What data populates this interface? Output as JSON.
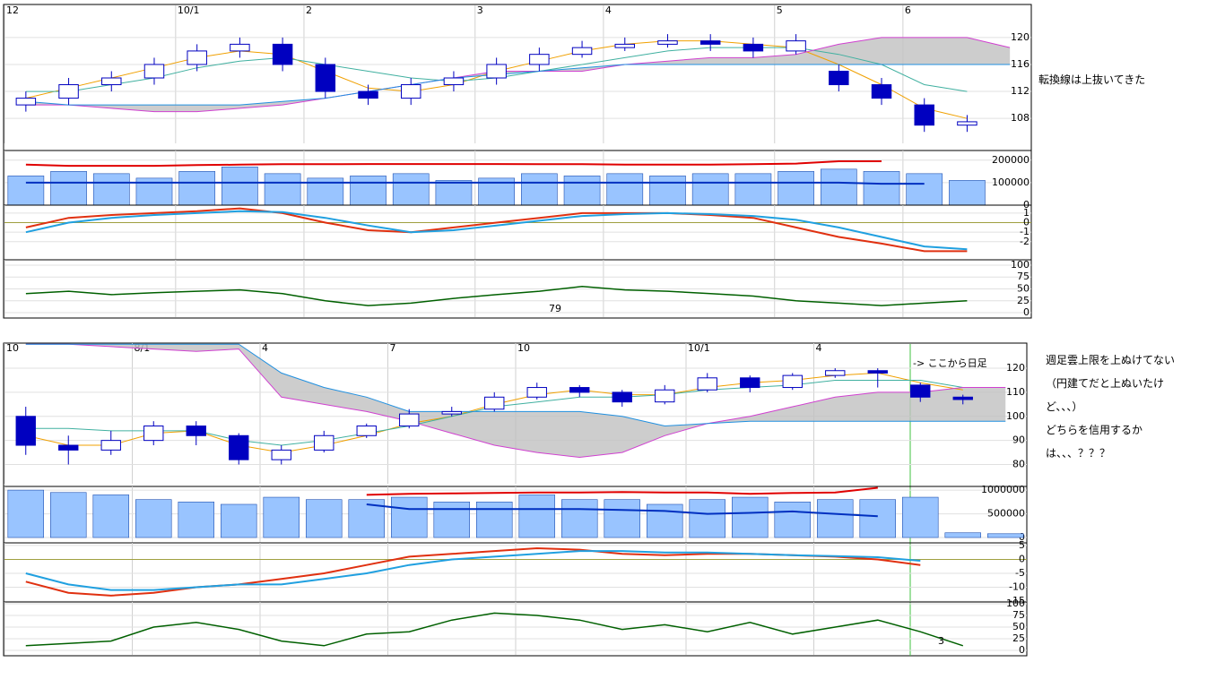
{
  "chart_data": [
    {
      "type": "candlestick",
      "categories": [
        "12",
        null,
        null,
        null,
        "10/1",
        null,
        null,
        "2",
        null,
        null,
        null,
        "3",
        null,
        null,
        "4",
        null,
        null,
        null,
        "5",
        null,
        null,
        "6",
        null,
        null
      ],
      "open": [
        110,
        111,
        113,
        114,
        116,
        118,
        119,
        116,
        112,
        111,
        113,
        114,
        116,
        117.5,
        118.5,
        119,
        119.5,
        119,
        118,
        115,
        113,
        110,
        107,
        null
      ],
      "high": [
        112,
        114,
        115,
        117,
        119,
        120,
        120,
        117,
        113,
        114,
        115,
        117,
        118.5,
        119.5,
        120,
        120.5,
        120.5,
        120,
        120.5,
        116,
        114,
        111,
        108.5,
        null
      ],
      "low": [
        109,
        110,
        112,
        113,
        115,
        117,
        115,
        111,
        110,
        110,
        112,
        113,
        115,
        117,
        118,
        118.5,
        118,
        117,
        117.5,
        112,
        110,
        106,
        106,
        null
      ],
      "close": [
        111,
        113,
        114,
        116,
        118,
        119,
        116,
        112,
        111,
        113,
        114,
        116,
        117.5,
        118.5,
        119,
        119.5,
        119,
        118,
        119.5,
        113,
        111,
        107,
        107.5,
        null
      ],
      "color": "#0000c0",
      "cloud_color": "#c0c0c0",
      "series": [
        {
          "color": "#f0a000",
          "values": [
            111,
            112.5,
            114,
            115.5,
            117,
            118,
            117.5,
            115,
            112.5,
            112,
            113,
            115,
            116.5,
            118,
            119,
            119.5,
            119.5,
            119,
            118.5,
            116,
            113,
            109.5,
            108,
            null
          ]
        },
        {
          "color": "#40b0a0",
          "values": [
            112,
            112,
            113,
            114,
            115.5,
            116.5,
            117,
            116,
            115,
            114,
            113.5,
            114,
            115,
            116,
            117,
            118,
            118.5,
            118.5,
            118.5,
            117.5,
            116,
            113,
            112,
            null
          ]
        },
        {
          "color": "#d040d0",
          "values": [
            110,
            110,
            109.5,
            109,
            109,
            109.5,
            110,
            111,
            112,
            113,
            114,
            115,
            115,
            115,
            116,
            116.5,
            117,
            117,
            117.5,
            119,
            120,
            120,
            120,
            118.5
          ]
        },
        {
          "color": "#2090e0",
          "values": [
            110.5,
            110,
            110,
            110,
            110,
            110,
            110.5,
            111,
            112,
            113,
            114,
            114.5,
            115,
            115.5,
            116,
            116,
            116,
            116,
            116,
            116,
            116,
            116,
            116,
            116
          ]
        }
      ],
      "ylim": [
        104.3,
        124.5
      ],
      "yticks": [
        108,
        112,
        116,
        120
      ],
      "grid": true
    },
    {
      "type": "bar",
      "color": "#99c4ff",
      "values": [
        130000,
        150000,
        140000,
        120000,
        150000,
        170000,
        140000,
        120000,
        130000,
        140000,
        110000,
        120000,
        140000,
        130000,
        140000,
        130000,
        140000,
        140000,
        150000,
        160000,
        150000,
        140000,
        110000,
        null
      ],
      "series": [
        {
          "color": "#e00000",
          "values": [
            180000,
            175000,
            175000,
            175000,
            178000,
            180000,
            182000,
            182000,
            183000,
            183000,
            183000,
            183000,
            182000,
            182000,
            180000,
            180000,
            180000,
            182000,
            185000,
            195000,
            195000,
            null,
            null,
            null
          ]
        },
        {
          "color": "#0030c0",
          "values": [
            100000,
            100000,
            100000,
            100000,
            100000,
            100000,
            100000,
            100000,
            100000,
            100000,
            100000,
            100000,
            100000,
            100000,
            100000,
            100000,
            100000,
            100000,
            100000,
            100000,
            95000,
            95000,
            null,
            null
          ]
        }
      ],
      "ylim": [
        0,
        235000
      ],
      "yticks": [
        0,
        100000,
        200000
      ]
    },
    {
      "type": "line",
      "series": [
        {
          "color": "#e03010",
          "values": [
            -0.5,
            0.5,
            0.8,
            1,
            1.2,
            1.5,
            1,
            0,
            -0.8,
            -1,
            -0.5,
            0,
            0.5,
            1,
            1,
            1,
            0.8,
            0.5,
            -0.5,
            -1.5,
            -2.2,
            -3,
            -3,
            null
          ]
        },
        {
          "color": "#20a0e0",
          "values": [
            -1,
            0,
            0.5,
            0.8,
            1,
            1.2,
            1.1,
            0.5,
            -0.3,
            -1,
            -0.8,
            -0.3,
            0.2,
            0.7,
            0.9,
            1,
            0.9,
            0.7,
            0.3,
            -0.5,
            -1.5,
            -2.5,
            -2.8,
            null
          ]
        }
      ],
      "ylim": [
        -3.9,
        1.65
      ],
      "yticks": [
        1,
        0,
        -1,
        -2
      ]
    },
    {
      "type": "line",
      "color": "#006000",
      "values": [
        40,
        45,
        38,
        42,
        45,
        48,
        40,
        25,
        15,
        20,
        30,
        38,
        45,
        55,
        48,
        45,
        40,
        35,
        25,
        20,
        15,
        20,
        25,
        null
      ],
      "ylim": [
        -9.4,
        107.5
      ],
      "yticks": [
        100,
        75,
        50,
        25,
        0
      ],
      "annotation": "79"
    },
    {
      "type": "candlestick",
      "categories": [
        "10",
        null,
        null,
        "8/1",
        null,
        null,
        "4",
        null,
        null,
        "7",
        null,
        null,
        "10",
        null,
        null,
        null,
        "10/1",
        null,
        null,
        "4",
        null,
        null,
        null,
        null
      ],
      "open": [
        100,
        88,
        86,
        90,
        96,
        92,
        82,
        86,
        92,
        96,
        101,
        103,
        108,
        112,
        110,
        106,
        111,
        116,
        112,
        117,
        119,
        113,
        108,
        null
      ],
      "high": [
        104,
        92,
        94,
        98,
        98,
        93,
        88,
        94,
        97,
        103,
        104,
        110,
        114,
        113,
        111,
        113,
        118,
        117,
        118,
        120,
        120,
        114,
        109,
        null
      ],
      "low": [
        84,
        80,
        84,
        88,
        88,
        80,
        80,
        85,
        91,
        95,
        100,
        102,
        107,
        108,
        104,
        105,
        110,
        110,
        111,
        116,
        112,
        106,
        105,
        null
      ],
      "close": [
        88,
        86,
        90,
        96,
        92,
        82,
        86,
        92,
        96,
        101,
        102,
        108,
        112,
        110,
        106,
        111,
        116,
        112,
        117,
        119,
        118,
        108,
        107,
        null
      ],
      "color": "#0000c0",
      "cloud_color": "#c0c0c0",
      "series": [
        {
          "color": "#f0a000",
          "values": [
            92,
            88,
            88,
            93,
            94,
            88,
            85,
            88,
            92,
            97,
            100,
            105,
            109,
            111,
            109,
            109,
            112,
            114,
            115,
            117,
            118,
            114,
            111,
            null
          ]
        },
        {
          "color": "#40b0a0",
          "values": [
            95,
            95,
            94,
            94,
            94,
            90,
            88,
            90,
            93,
            96,
            100,
            104,
            106,
            108,
            108,
            109,
            111,
            112,
            113,
            115,
            115,
            115,
            112,
            null
          ]
        },
        {
          "color": "#d040d0",
          "values": [
            130,
            130,
            129,
            128,
            127,
            128,
            108,
            105,
            102,
            98,
            93,
            88,
            85,
            83,
            85,
            92,
            97,
            100,
            104,
            108,
            110,
            110,
            112,
            112
          ]
        },
        {
          "color": "#2090e0",
          "values": [
            130,
            130,
            130,
            130,
            130,
            130,
            118,
            112,
            108,
            102,
            102,
            102,
            102,
            102,
            100,
            96,
            97,
            98,
            98,
            98,
            98,
            98,
            98,
            98
          ]
        }
      ],
      "ylim": [
        72,
        129.7
      ],
      "yticks": [
        120,
        110,
        100,
        90,
        80
      ],
      "grid": true,
      "annotation": "-> ここから日足"
    },
    {
      "type": "bar",
      "color": "#99c4ff",
      "values": [
        1000000,
        950000,
        900000,
        800000,
        750000,
        700000,
        850000,
        800000,
        800000,
        850000,
        750000,
        750000,
        900000,
        800000,
        800000,
        700000,
        800000,
        850000,
        750000,
        800000,
        800000,
        850000,
        100000,
        80000
      ],
      "series": [
        {
          "color": "#e00000",
          "values": [
            null,
            null,
            null,
            null,
            null,
            null,
            null,
            null,
            900000,
            920000,
            930000,
            940000,
            950000,
            950000,
            960000,
            950000,
            950000,
            920000,
            940000,
            950000,
            1050000,
            null,
            null,
            null
          ]
        },
        {
          "color": "#0030c0",
          "values": [
            null,
            null,
            null,
            null,
            null,
            null,
            null,
            null,
            700000,
            600000,
            600000,
            600000,
            600000,
            600000,
            580000,
            560000,
            500000,
            520000,
            550000,
            500000,
            450000,
            null,
            null,
            null
          ]
        }
      ],
      "ylim": [
        -113000,
        1040000
      ],
      "yticks": [
        0,
        500000,
        1000000
      ]
    },
    {
      "type": "line",
      "series": [
        {
          "color": "#e03010",
          "values": [
            -8,
            -12,
            -13,
            -12,
            -10,
            -9,
            -7,
            -5,
            -2,
            1,
            2,
            3,
            4,
            3.5,
            2,
            1.5,
            2,
            2,
            1.5,
            1,
            0,
            -2,
            null,
            null
          ]
        },
        {
          "color": "#20a0e0",
          "values": [
            -5,
            -9,
            -11,
            -11,
            -10,
            -9,
            -9,
            -7,
            -5,
            -2,
            0,
            1,
            2,
            3,
            3,
            2.5,
            2.5,
            2,
            1.5,
            1.2,
            0.8,
            -0.5,
            null,
            null
          ]
        }
      ],
      "ylim": [
        -15.3,
        5.3
      ],
      "yticks": [
        5,
        0,
        -5,
        -10,
        -15
      ]
    },
    {
      "type": "line",
      "color": "#006000",
      "values": [
        10,
        15,
        20,
        50,
        60,
        45,
        20,
        10,
        35,
        40,
        65,
        80,
        75,
        65,
        45,
        55,
        40,
        60,
        35,
        50,
        65,
        40,
        10,
        null
      ],
      "ylim": [
        -9.6,
        100
      ],
      "yticks": [
        100,
        75,
        50,
        25,
        0
      ],
      "annotation": "3"
    }
  ],
  "notes": {
    "top": "転換線は上抜いてきた",
    "bottom": [
      "週足雲上限を上ぬけてない",
      "（円建てだと上ぬいたけ",
      "ど、、、）",
      "どちらを信用するか",
      "は、、、？？？"
    ]
  }
}
